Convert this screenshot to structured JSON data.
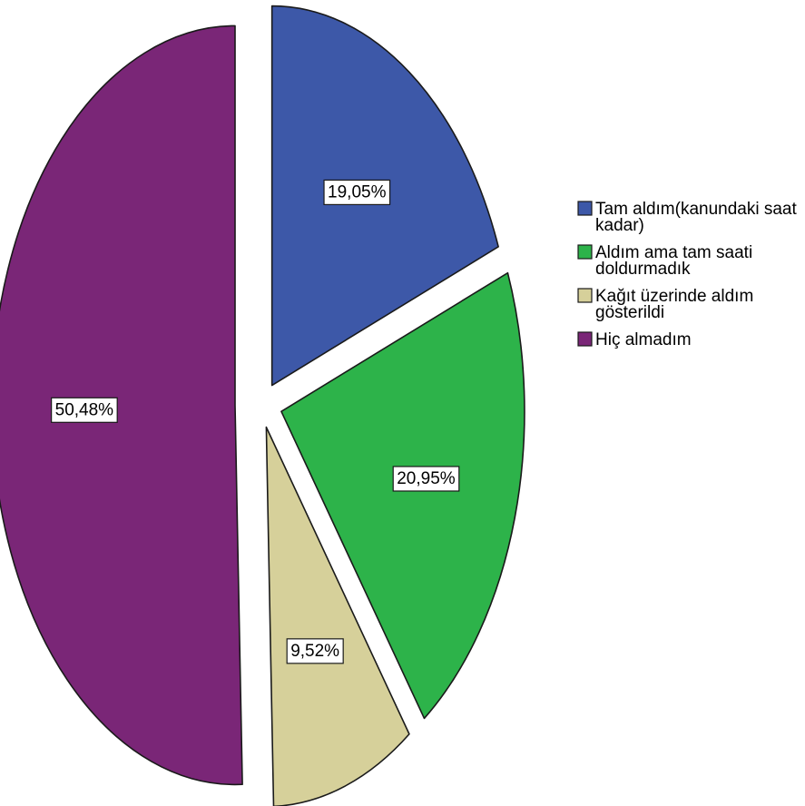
{
  "chart_data": {
    "type": "pie",
    "title": "",
    "start": "12 o'clock",
    "direction": "clockwise",
    "exploded": true,
    "legend": "right",
    "slices": [
      {
        "label": "Tam aldım(kanundaki saat kadar)",
        "legend_lines": [
          "Tam aldım(kanundaki saat",
          "kadar)"
        ],
        "value": 19.05,
        "display": "19,05%",
        "color": "#3d58a8"
      },
      {
        "label": "Aldım ama tam saati doldurmadık",
        "legend_lines": [
          "Aldım ama tam saati",
          "doldurmadık"
        ],
        "value": 20.95,
        "display": "20,95%",
        "color": "#2db34a"
      },
      {
        "label": "Kağıt üzerinde aldım gösterildi",
        "legend_lines": [
          "Kağıt üzerinde aldım",
          "gösterildi"
        ],
        "value": 9.52,
        "display": "9,52%",
        "color": "#d6d09a"
      },
      {
        "label": "Hiç almadım",
        "legend_lines": [
          "Hiç almadım"
        ],
        "value": 50.48,
        "display": "50,48%",
        "color": "#7a2677"
      }
    ]
  }
}
